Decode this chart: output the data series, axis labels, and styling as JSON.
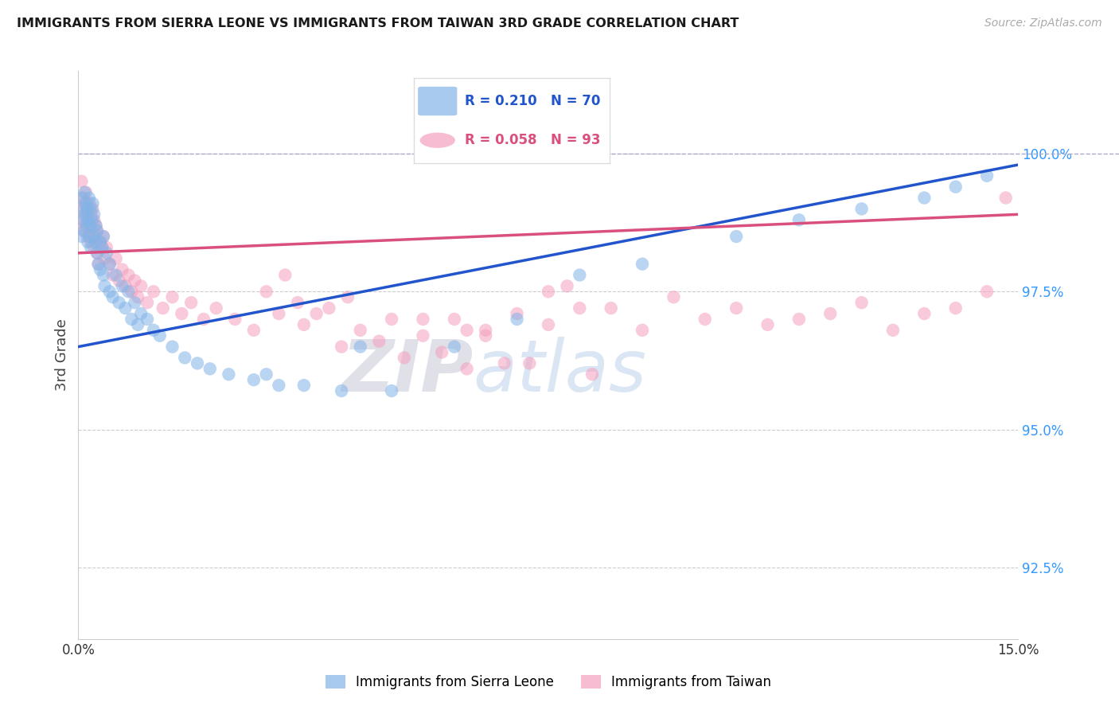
{
  "title": "IMMIGRANTS FROM SIERRA LEONE VS IMMIGRANTS FROM TAIWAN 3RD GRADE CORRELATION CHART",
  "source": "Source: ZipAtlas.com",
  "ylabel": "3rd Grade",
  "y_ticks": [
    92.5,
    95.0,
    97.5,
    100.0
  ],
  "y_tick_labels": [
    "92.5%",
    "95.0%",
    "97.5%",
    "100.0%"
  ],
  "x_min": 0.0,
  "x_max": 15.0,
  "y_min": 91.2,
  "y_max": 101.5,
  "legend_r_blue": "R = 0.210",
  "legend_n_blue": "N = 70",
  "legend_r_pink": "R = 0.058",
  "legend_n_pink": "N = 93",
  "legend_label_blue": "Immigrants from Sierra Leone",
  "legend_label_pink": "Immigrants from Taiwan",
  "color_blue": "#82b4e8",
  "color_pink": "#f5a0be",
  "color_blue_line": "#2255cc",
  "color_pink_line": "#d95080",
  "blue_r": 0.21,
  "pink_r": 0.058,
  "blue_n": 70,
  "pink_n": 93,
  "blue_scatter_x": [
    0.05,
    0.05,
    0.07,
    0.08,
    0.09,
    0.1,
    0.1,
    0.12,
    0.13,
    0.14,
    0.15,
    0.15,
    0.17,
    0.18,
    0.19,
    0.2,
    0.2,
    0.22,
    0.23,
    0.25,
    0.25,
    0.27,
    0.28,
    0.3,
    0.3,
    0.32,
    0.35,
    0.35,
    0.38,
    0.4,
    0.4,
    0.42,
    0.45,
    0.5,
    0.5,
    0.55,
    0.6,
    0.65,
    0.7,
    0.75,
    0.8,
    0.85,
    0.9,
    0.95,
    1.0,
    1.1,
    1.2,
    1.3,
    1.5,
    1.7,
    1.9,
    2.1,
    2.4,
    2.8,
    3.2,
    3.6,
    4.2,
    5.0,
    6.0,
    7.0,
    8.0,
    9.0,
    10.5,
    11.5,
    12.5,
    13.5,
    14.0,
    14.5,
    3.0,
    4.5
  ],
  "blue_scatter_y": [
    98.5,
    99.2,
    98.8,
    99.0,
    98.6,
    98.9,
    99.3,
    99.1,
    98.7,
    99.0,
    98.4,
    98.8,
    99.2,
    98.5,
    98.7,
    99.0,
    98.3,
    98.8,
    99.1,
    98.5,
    98.9,
    98.4,
    98.7,
    98.2,
    98.6,
    98.0,
    98.4,
    97.9,
    98.3,
    97.8,
    98.5,
    97.6,
    98.2,
    97.5,
    98.0,
    97.4,
    97.8,
    97.3,
    97.6,
    97.2,
    97.5,
    97.0,
    97.3,
    96.9,
    97.1,
    97.0,
    96.8,
    96.7,
    96.5,
    96.3,
    96.2,
    96.1,
    96.0,
    95.9,
    95.8,
    95.8,
    95.7,
    95.7,
    96.5,
    97.0,
    97.8,
    98.0,
    98.5,
    98.8,
    99.0,
    99.2,
    99.4,
    99.6,
    96.0,
    96.5
  ],
  "pink_scatter_x": [
    0.05,
    0.05,
    0.07,
    0.08,
    0.09,
    0.1,
    0.1,
    0.12,
    0.13,
    0.15,
    0.15,
    0.17,
    0.18,
    0.2,
    0.2,
    0.22,
    0.23,
    0.25,
    0.25,
    0.27,
    0.28,
    0.3,
    0.3,
    0.32,
    0.35,
    0.38,
    0.4,
    0.42,
    0.45,
    0.5,
    0.55,
    0.6,
    0.65,
    0.7,
    0.75,
    0.8,
    0.85,
    0.9,
    0.95,
    1.0,
    1.1,
    1.2,
    1.35,
    1.5,
    1.65,
    1.8,
    2.0,
    2.2,
    2.5,
    2.8,
    3.2,
    3.6,
    4.0,
    4.5,
    5.0,
    5.5,
    6.0,
    6.5,
    7.0,
    7.5,
    8.0,
    9.0,
    10.0,
    11.0,
    12.0,
    13.0,
    14.0,
    14.5,
    14.8,
    4.2,
    5.2,
    6.2,
    7.2,
    8.2,
    5.8,
    6.8,
    3.5,
    4.8,
    3.0,
    3.8,
    3.3,
    6.5,
    4.3,
    5.5,
    7.8,
    8.5,
    9.5,
    10.5,
    11.5,
    12.5,
    13.5,
    6.2,
    7.5
  ],
  "pink_scatter_y": [
    99.0,
    99.5,
    98.8,
    99.2,
    98.6,
    99.1,
    98.7,
    99.3,
    98.9,
    99.0,
    98.5,
    98.8,
    99.1,
    98.4,
    98.9,
    98.6,
    99.0,
    98.3,
    98.8,
    98.5,
    98.7,
    98.2,
    98.6,
    98.0,
    98.4,
    98.3,
    98.5,
    98.1,
    98.3,
    98.0,
    97.8,
    98.1,
    97.7,
    97.9,
    97.6,
    97.8,
    97.5,
    97.7,
    97.4,
    97.6,
    97.3,
    97.5,
    97.2,
    97.4,
    97.1,
    97.3,
    97.0,
    97.2,
    97.0,
    96.8,
    97.1,
    96.9,
    97.2,
    96.8,
    97.0,
    96.7,
    97.0,
    96.8,
    97.1,
    96.9,
    97.2,
    96.8,
    97.0,
    96.9,
    97.1,
    96.8,
    97.2,
    97.5,
    99.2,
    96.5,
    96.3,
    96.1,
    96.2,
    96.0,
    96.4,
    96.2,
    97.3,
    96.6,
    97.5,
    97.1,
    97.8,
    96.7,
    97.4,
    97.0,
    97.6,
    97.2,
    97.4,
    97.2,
    97.0,
    97.3,
    97.1,
    96.8,
    97.5
  ],
  "blue_line_x0": 0.0,
  "blue_line_x1": 15.0,
  "blue_line_y0": 96.5,
  "blue_line_y1": 99.8,
  "pink_line_x0": 0.0,
  "pink_line_x1": 15.0,
  "pink_line_y0": 98.2,
  "pink_line_y1": 98.9,
  "dash_line_y": 100.0
}
